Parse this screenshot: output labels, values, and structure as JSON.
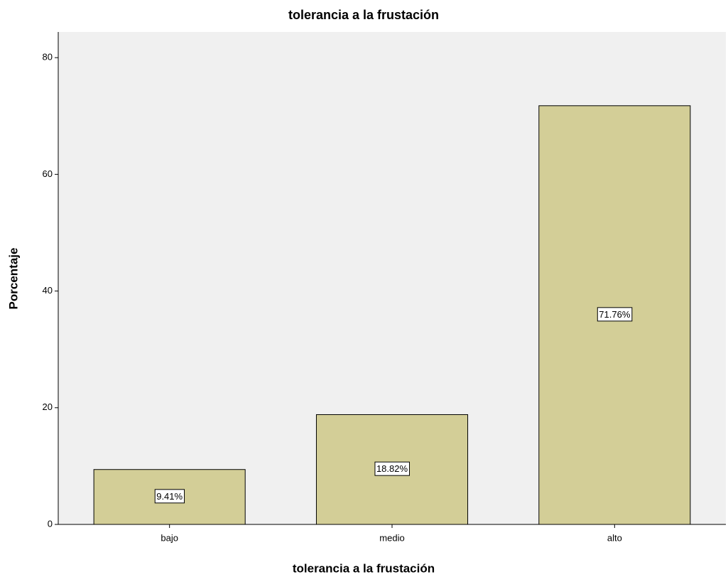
{
  "chart_data": {
    "type": "bar",
    "title": "tolerancia a la frustación",
    "x_label": "tolerancia a la frustación",
    "y_label": "Porcentaje",
    "categories": [
      "bajo",
      "medio",
      "alto"
    ],
    "values": [
      9.41,
      18.82,
      71.76
    ],
    "value_labels": [
      "9.41%",
      "18.82%",
      "71.76%"
    ],
    "color": "#d3ce97",
    "ylim": [
      0,
      84.4
    ],
    "yticks": [
      0,
      20,
      40,
      60,
      80
    ],
    "grid": false
  }
}
